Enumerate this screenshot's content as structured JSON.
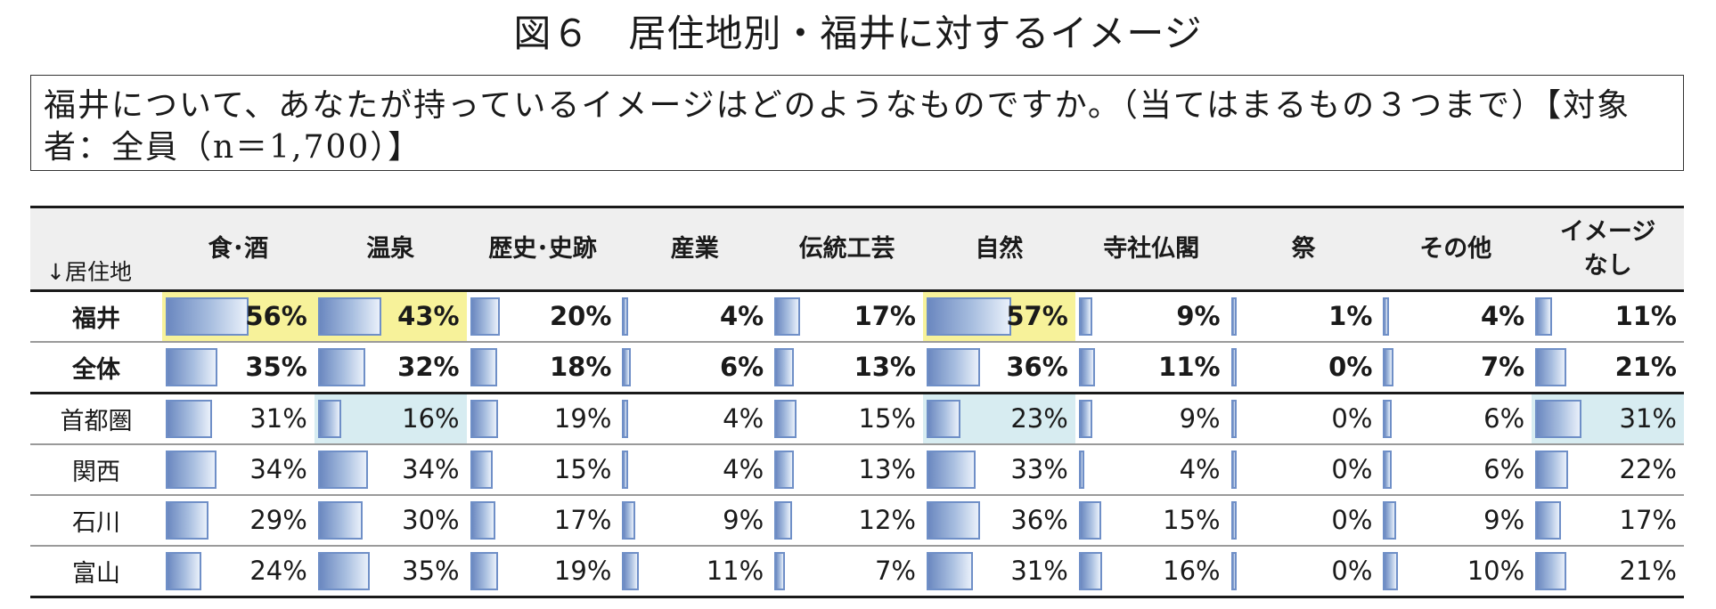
{
  "title": "図６　居住地別・福井に対するイメージ",
  "question": "福井について、あなたが持っているイメージはどのようなものですか。（当てはまるもの３つまで）【対象者：全員（n＝1,700）】",
  "chart_data": {
    "type": "table",
    "row_header": "↓居住地",
    "columns": [
      "食･酒",
      "温泉",
      "歴史･史跡",
      "産業",
      "伝統工芸",
      "自然",
      "寺社仏閣",
      "祭",
      "その他",
      "イメージなし"
    ],
    "column_display": [
      "食･酒",
      "温泉",
      "歴史･史跡",
      "産業",
      "伝統工芸",
      "自然",
      "寺社仏閣",
      "祭",
      "その他",
      "イメージ\nなし"
    ],
    "unit": "%",
    "rows": [
      {
        "label": "福井",
        "values": [
          56,
          43,
          20,
          4,
          17,
          57,
          9,
          1,
          4,
          11
        ],
        "bold": true,
        "highlight": "yellow",
        "highlight_cols": [
          0,
          1,
          5
        ]
      },
      {
        "label": "全体",
        "values": [
          35,
          32,
          18,
          6,
          13,
          36,
          11,
          0,
          7,
          21
        ],
        "bold": true
      },
      {
        "label": "首都圏",
        "values": [
          31,
          16,
          19,
          4,
          15,
          23,
          9,
          0,
          6,
          31
        ],
        "bold": false,
        "highlight": "blue",
        "highlight_cols": [
          1,
          5,
          9
        ]
      },
      {
        "label": "関西",
        "values": [
          34,
          34,
          15,
          4,
          13,
          33,
          4,
          0,
          6,
          22
        ],
        "bold": false
      },
      {
        "label": "石川",
        "values": [
          29,
          30,
          17,
          9,
          12,
          36,
          15,
          0,
          9,
          17
        ],
        "bold": false
      },
      {
        "label": "富山",
        "values": [
          24,
          35,
          19,
          11,
          7,
          31,
          16,
          0,
          10,
          21
        ],
        "bold": false
      }
    ],
    "colors": {
      "bar_fill_start": "#6b88c0",
      "bar_border": "#6f8fc7",
      "highlight_yellow": "#f7f29a",
      "highlight_blue": "#d7ecf1"
    }
  }
}
